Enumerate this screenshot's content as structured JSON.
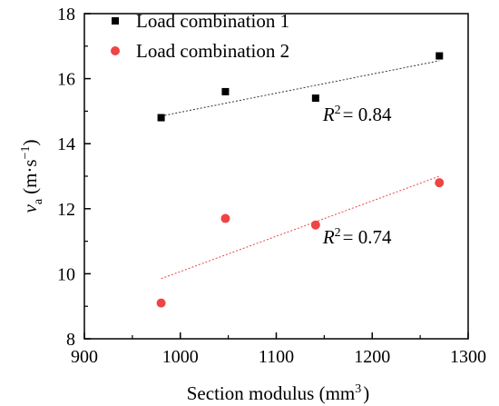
{
  "chart_data": {
    "type": "scatter",
    "xlabel": "Section modulus (mm",
    "xlabel_sup": "3",
    "xlabel_close": ")",
    "ylabel_v": "v",
    "ylabel_sub": "a",
    "ylabel_unit": "(m·s",
    "ylabel_sup": "−1",
    "ylabel_close": ")",
    "xlim": [
      900,
      1300
    ],
    "ylim": [
      8,
      18
    ],
    "xticks": [
      "900",
      "1000",
      "1100",
      "1200",
      "1300"
    ],
    "yticks": [
      "8",
      "10",
      "12",
      "14",
      "16",
      "18"
    ],
    "xtick_values": [
      900,
      1000,
      1100,
      1200,
      1300
    ],
    "ytick_values": [
      8,
      10,
      12,
      14,
      16,
      18
    ],
    "grid": false,
    "legend_position": "top-left",
    "series": [
      {
        "name": "Load combination 1",
        "marker": "square",
        "color": "#000000",
        "points": [
          {
            "x": 980,
            "y": 14.8
          },
          {
            "x": 1047,
            "y": 15.6
          },
          {
            "x": 1141,
            "y": 15.4
          },
          {
            "x": 1270,
            "y": 16.7
          }
        ],
        "trend": {
          "x0": 980,
          "y0": 14.85,
          "x1": 1270,
          "y1": 16.55,
          "color": "#333333"
        },
        "r2_label": "R",
        "r2_sup": "2",
        "r2_value": "= 0.84",
        "r2_at": {
          "x": 1141,
          "y": 14.95
        }
      },
      {
        "name": "Load combination 2",
        "marker": "circle",
        "color": "#ee4444",
        "points": [
          {
            "x": 980,
            "y": 9.1
          },
          {
            "x": 1047,
            "y": 11.7
          },
          {
            "x": 1141,
            "y": 11.5
          },
          {
            "x": 1270,
            "y": 12.8
          }
        ],
        "trend": {
          "x0": 980,
          "y0": 9.85,
          "x1": 1270,
          "y1": 13.0,
          "color": "#ee4444"
        },
        "r2_label": "R",
        "r2_sup": "2",
        "r2_value": "= 0.74",
        "r2_at": {
          "x": 1141,
          "y": 11.18
        }
      }
    ]
  }
}
